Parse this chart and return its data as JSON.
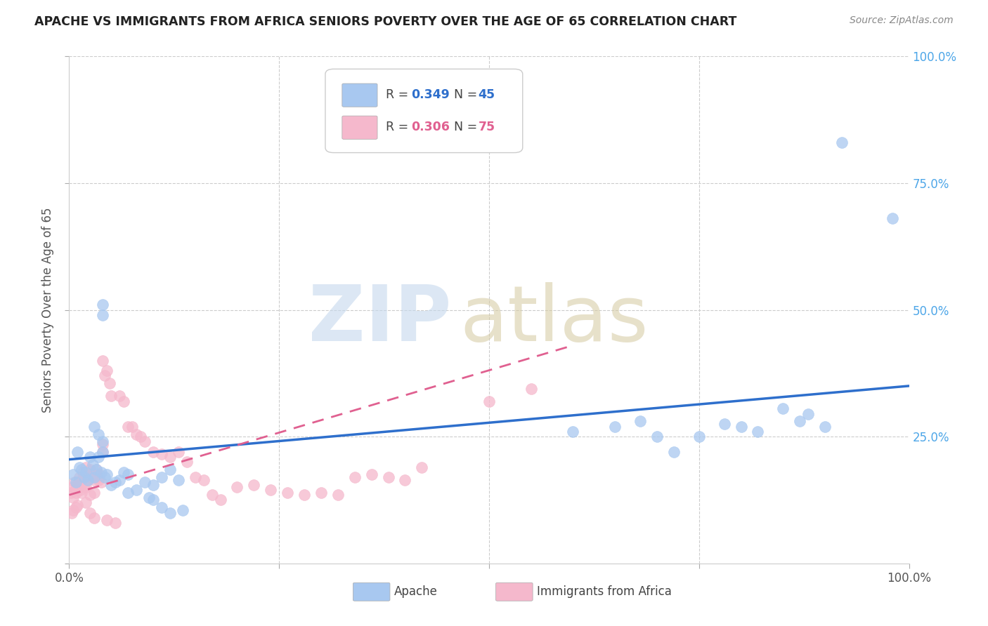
{
  "title": "APACHE VS IMMIGRANTS FROM AFRICA SENIORS POVERTY OVER THE AGE OF 65 CORRELATION CHART",
  "source": "Source: ZipAtlas.com",
  "ylabel": "Seniors Poverty Over the Age of 65",
  "xlim": [
    0,
    100
  ],
  "ylim": [
    0,
    100
  ],
  "xticks": [
    0,
    25,
    50,
    75,
    100
  ],
  "yticks": [
    0,
    25,
    50,
    75,
    100
  ],
  "xticklabels": [
    "0.0%",
    "",
    "",
    "",
    "100.0%"
  ],
  "yticklabels": [
    "",
    "25.0%",
    "50.0%",
    "75.0%",
    "100.0%"
  ],
  "apache_color": "#a8c8f0",
  "africa_color": "#f5b8cc",
  "apache_line_color": "#2e6fcc",
  "africa_line_color": "#e06090",
  "background_color": "#ffffff",
  "grid_color": "#cccccc",
  "title_color": "#222222",
  "apache_trend_x": [
    0,
    100
  ],
  "apache_trend_y": [
    20.5,
    35.0
  ],
  "africa_trend_x": [
    0,
    60
  ],
  "africa_trend_y": [
    13.5,
    43.0
  ],
  "apache_points": [
    [
      0.5,
      17.5
    ],
    [
      0.8,
      16.0
    ],
    [
      1.0,
      22.0
    ],
    [
      1.2,
      19.0
    ],
    [
      1.5,
      18.5
    ],
    [
      1.8,
      17.0
    ],
    [
      2.0,
      18.0
    ],
    [
      2.2,
      16.5
    ],
    [
      2.5,
      21.0
    ],
    [
      2.8,
      19.5
    ],
    [
      3.0,
      17.0
    ],
    [
      3.2,
      18.5
    ],
    [
      3.5,
      21.0
    ],
    [
      3.8,
      18.0
    ],
    [
      4.0,
      24.0
    ],
    [
      4.2,
      17.0
    ],
    [
      4.5,
      17.5
    ],
    [
      5.0,
      15.5
    ],
    [
      5.5,
      16.0
    ],
    [
      6.0,
      16.5
    ],
    [
      6.5,
      18.0
    ],
    [
      7.0,
      17.5
    ],
    [
      9.0,
      16.0
    ],
    [
      10.0,
      15.5
    ],
    [
      11.0,
      17.0
    ],
    [
      12.0,
      18.5
    ],
    [
      13.0,
      16.5
    ],
    [
      4.0,
      49.0
    ],
    [
      4.0,
      51.0
    ],
    [
      60.0,
      26.0
    ],
    [
      65.0,
      27.0
    ],
    [
      68.0,
      28.0
    ],
    [
      70.0,
      25.0
    ],
    [
      72.0,
      22.0
    ],
    [
      75.0,
      25.0
    ],
    [
      78.0,
      27.5
    ],
    [
      80.0,
      27.0
    ],
    [
      82.0,
      26.0
    ],
    [
      85.0,
      30.5
    ],
    [
      87.0,
      28.0
    ],
    [
      88.0,
      29.5
    ],
    [
      90.0,
      27.0
    ],
    [
      92.0,
      83.0
    ],
    [
      98.0,
      68.0
    ],
    [
      3.0,
      27.0
    ],
    [
      3.5,
      25.5
    ],
    [
      4.0,
      22.0
    ],
    [
      7.0,
      14.0
    ],
    [
      8.0,
      14.5
    ],
    [
      9.5,
      13.0
    ],
    [
      10.0,
      12.5
    ],
    [
      11.0,
      11.0
    ],
    [
      12.0,
      10.0
    ],
    [
      13.5,
      10.5
    ]
  ],
  "africa_points": [
    [
      0.2,
      14.0
    ],
    [
      0.4,
      15.0
    ],
    [
      0.5,
      13.0
    ],
    [
      0.6,
      16.0
    ],
    [
      0.7,
      14.5
    ],
    [
      0.8,
      14.0
    ],
    [
      0.9,
      15.5
    ],
    [
      1.0,
      15.0
    ],
    [
      1.1,
      16.0
    ],
    [
      1.2,
      17.0
    ],
    [
      1.3,
      14.5
    ],
    [
      1.4,
      15.0
    ],
    [
      1.5,
      16.5
    ],
    [
      1.6,
      18.0
    ],
    [
      1.8,
      15.5
    ],
    [
      2.0,
      19.0
    ],
    [
      2.2,
      16.5
    ],
    [
      2.4,
      17.5
    ],
    [
      2.5,
      18.5
    ],
    [
      2.6,
      17.0
    ],
    [
      2.8,
      17.5
    ],
    [
      3.0,
      16.5
    ],
    [
      3.2,
      18.5
    ],
    [
      3.4,
      17.0
    ],
    [
      3.6,
      17.5
    ],
    [
      3.8,
      16.0
    ],
    [
      4.0,
      40.0
    ],
    [
      4.2,
      37.0
    ],
    [
      4.5,
      38.0
    ],
    [
      4.8,
      35.5
    ],
    [
      5.0,
      33.0
    ],
    [
      6.0,
      33.0
    ],
    [
      6.5,
      32.0
    ],
    [
      7.0,
      27.0
    ],
    [
      7.5,
      27.0
    ],
    [
      8.0,
      25.5
    ],
    [
      8.5,
      25.0
    ],
    [
      9.0,
      24.0
    ],
    [
      10.0,
      22.0
    ],
    [
      11.0,
      21.5
    ],
    [
      12.0,
      21.0
    ],
    [
      13.0,
      22.0
    ],
    [
      14.0,
      20.0
    ],
    [
      15.0,
      17.0
    ],
    [
      16.0,
      16.5
    ],
    [
      17.0,
      13.5
    ],
    [
      18.0,
      12.5
    ],
    [
      20.0,
      15.0
    ],
    [
      22.0,
      15.5
    ],
    [
      24.0,
      14.5
    ],
    [
      26.0,
      14.0
    ],
    [
      28.0,
      13.5
    ],
    [
      30.0,
      14.0
    ],
    [
      32.0,
      13.5
    ],
    [
      34.0,
      17.0
    ],
    [
      36.0,
      17.5
    ],
    [
      38.0,
      17.0
    ],
    [
      40.0,
      16.5
    ],
    [
      42.0,
      19.0
    ],
    [
      50.0,
      32.0
    ],
    [
      55.0,
      34.5
    ],
    [
      1.5,
      14.0
    ],
    [
      2.0,
      15.0
    ],
    [
      2.5,
      13.5
    ],
    [
      3.0,
      14.0
    ],
    [
      3.5,
      16.5
    ],
    [
      4.0,
      22.0
    ],
    [
      4.0,
      23.5
    ],
    [
      2.0,
      12.0
    ],
    [
      1.0,
      11.5
    ],
    [
      0.8,
      11.0
    ],
    [
      0.5,
      10.5
    ],
    [
      0.3,
      10.0
    ],
    [
      2.5,
      10.0
    ],
    [
      3.0,
      9.0
    ],
    [
      4.5,
      8.5
    ],
    [
      5.5,
      8.0
    ]
  ]
}
